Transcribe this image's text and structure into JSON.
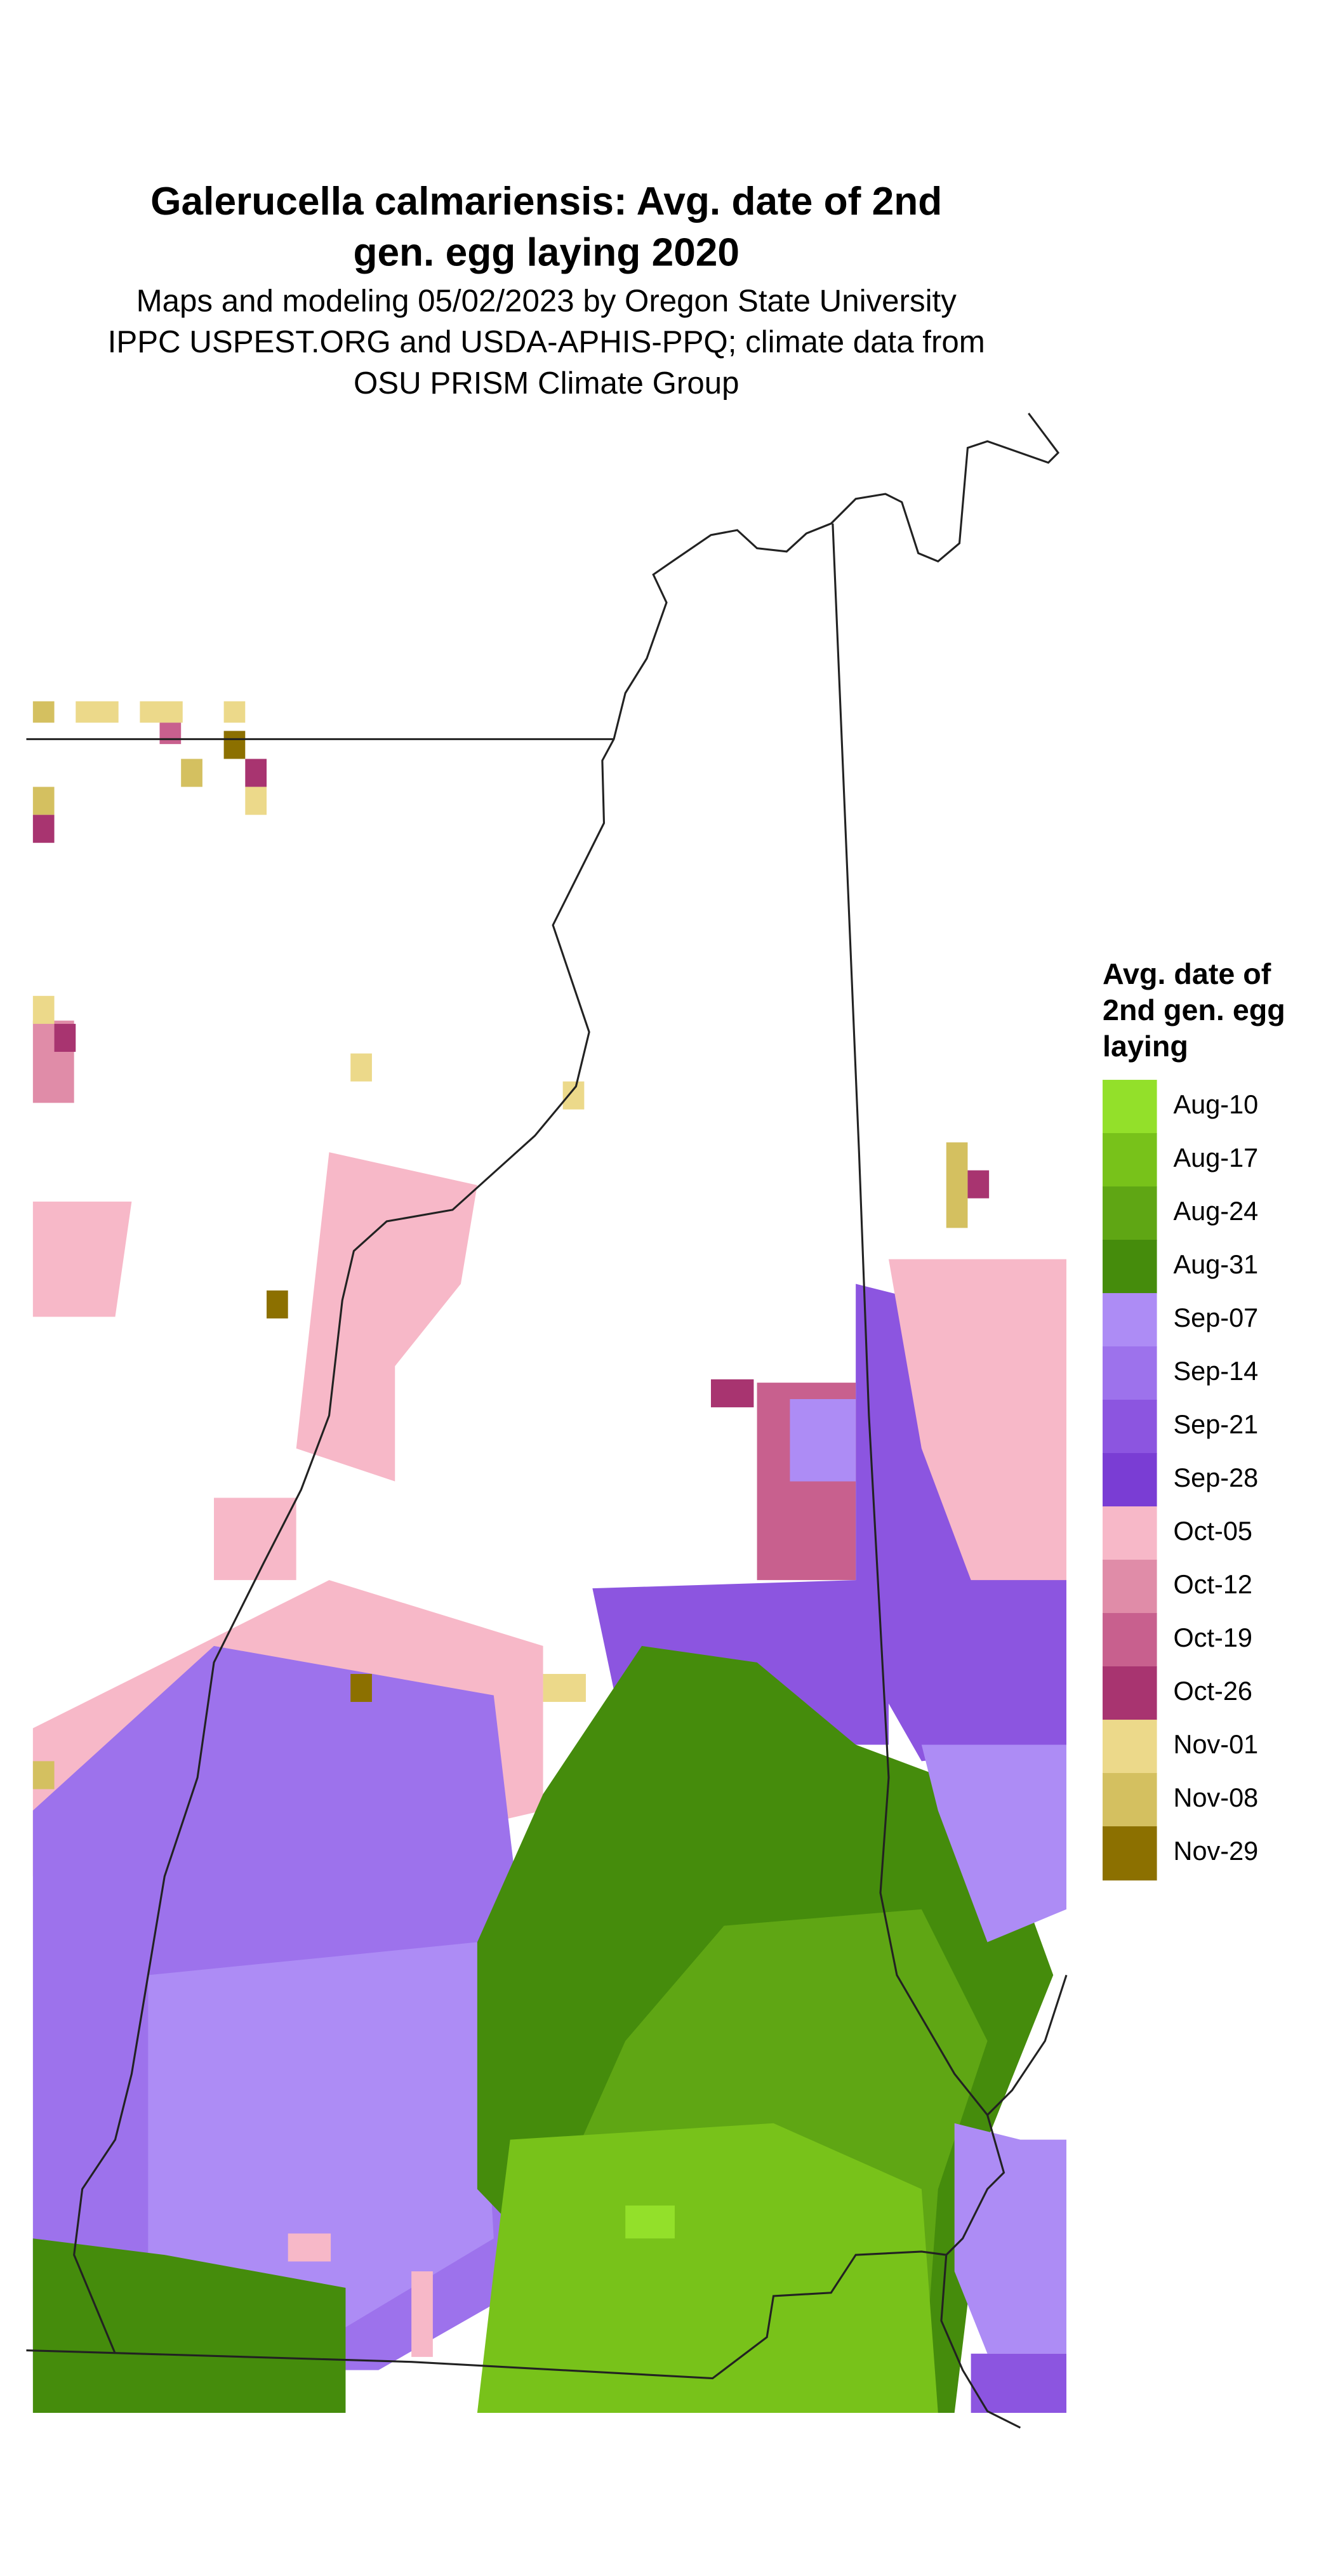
{
  "title_lines": [
    "Galerucella calmariensis: Avg. date of 2nd",
    "gen. egg laying 2020"
  ],
  "subtitle_lines": [
    "Maps and modeling 05/02/2023 by Oregon State University",
    "IPPC USPEST.ORG and USDA-APHIS-PPQ; climate data from",
    "OSU PRISM Climate Group"
  ],
  "legend": {
    "title_lines": [
      "Avg. date of",
      "2nd gen. egg",
      "laying"
    ],
    "items": [
      {
        "label": "Aug-10",
        "color": "#93e02a"
      },
      {
        "label": "Aug-17",
        "color": "#78c21a"
      },
      {
        "label": "Aug-24",
        "color": "#5fa614"
      },
      {
        "label": "Aug-31",
        "color": "#458c0c"
      },
      {
        "label": "Sep-07",
        "color": "#ad8cf5"
      },
      {
        "label": "Sep-14",
        "color": "#9d72ec"
      },
      {
        "label": "Sep-21",
        "color": "#8c55e0"
      },
      {
        "label": "Sep-28",
        "color": "#7a3dd4"
      },
      {
        "label": "Oct-05",
        "color": "#f7b8c8"
      },
      {
        "label": "Oct-12",
        "color": "#e08ca8"
      },
      {
        "label": "Oct-19",
        "color": "#c8608e"
      },
      {
        "label": "Oct-26",
        "color": "#a83470"
      },
      {
        "label": "Nov-01",
        "color": "#ecd98a"
      },
      {
        "label": "Nov-08",
        "color": "#d4c060"
      },
      {
        "label": "Nov-29",
        "color": "#8c7000"
      }
    ]
  }
}
